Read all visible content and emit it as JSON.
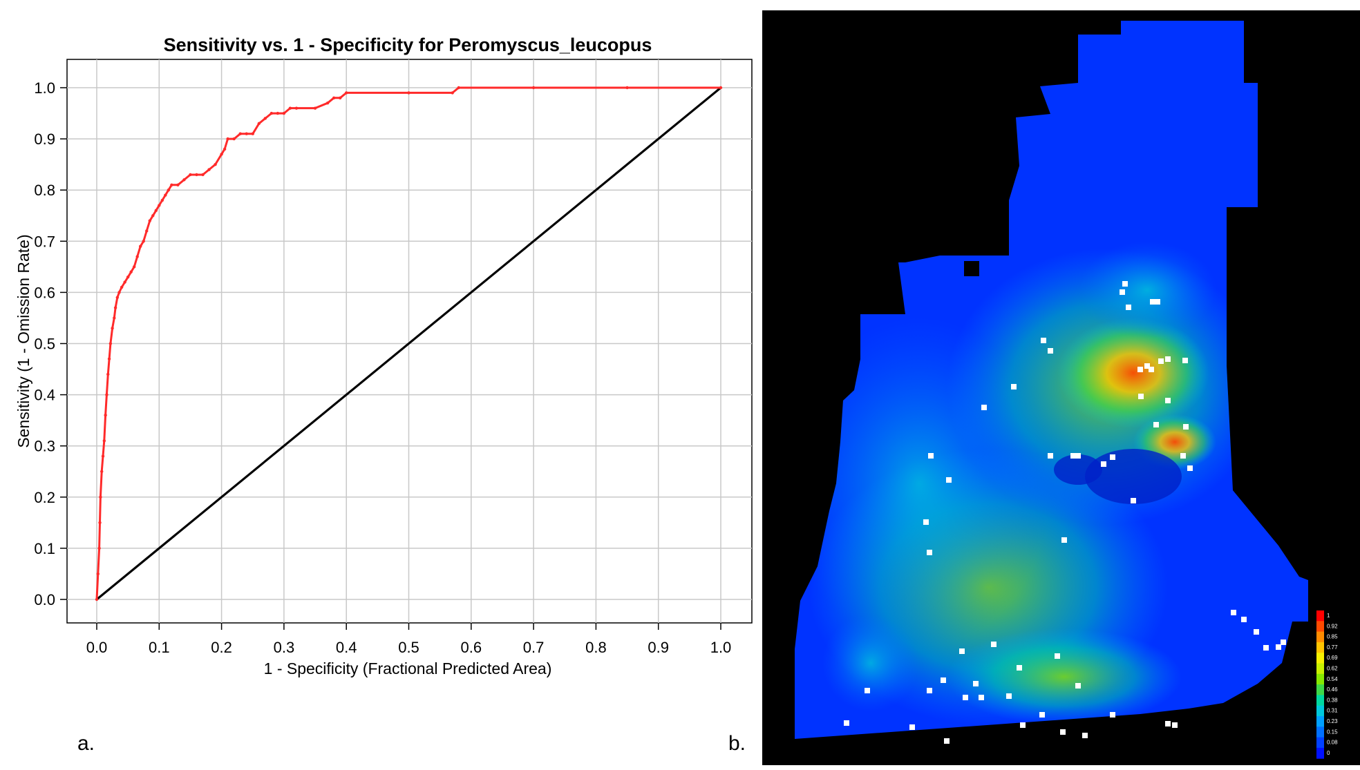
{
  "panels": {
    "a": {
      "label": "a."
    },
    "b": {
      "label": "b."
    }
  },
  "chart_data": [
    {
      "type": "line",
      "title": "Sensitivity vs. 1 - Specificity for Peromyscus_leucopus",
      "xlabel": "1 - Specificity  (Fractional Predicted Area)",
      "ylabel": "Sensitivity  (1 - Omission Rate)",
      "xlim": [
        0.0,
        1.0
      ],
      "ylim": [
        0.0,
        1.0
      ],
      "xticks": [
        "0.0",
        "0.1",
        "0.2",
        "0.3",
        "0.4",
        "0.5",
        "0.6",
        "0.7",
        "0.8",
        "0.9",
        "1.0"
      ],
      "yticks": [
        "0.0",
        "0.1",
        "0.2",
        "0.3",
        "0.4",
        "0.5",
        "0.6",
        "0.7",
        "0.8",
        "0.9",
        "1.0"
      ],
      "grid": true,
      "series": [
        {
          "color": "#ff2a2a",
          "x": [
            0.0,
            0.002,
            0.004,
            0.005,
            0.006,
            0.008,
            0.01,
            0.012,
            0.014,
            0.016,
            0.018,
            0.02,
            0.022,
            0.025,
            0.028,
            0.03,
            0.033,
            0.036,
            0.04,
            0.045,
            0.05,
            0.055,
            0.06,
            0.065,
            0.07,
            0.075,
            0.08,
            0.085,
            0.09,
            0.095,
            0.1,
            0.105,
            0.11,
            0.115,
            0.12,
            0.13,
            0.14,
            0.15,
            0.16,
            0.17,
            0.18,
            0.19,
            0.2,
            0.205,
            0.21,
            0.22,
            0.23,
            0.24,
            0.25,
            0.26,
            0.27,
            0.28,
            0.29,
            0.3,
            0.31,
            0.32,
            0.35,
            0.37,
            0.38,
            0.39,
            0.4,
            0.5,
            0.57,
            0.58,
            0.7,
            0.85,
            1.0
          ],
          "y": [
            0.0,
            0.05,
            0.1,
            0.15,
            0.2,
            0.25,
            0.28,
            0.31,
            0.36,
            0.4,
            0.44,
            0.47,
            0.5,
            0.53,
            0.55,
            0.57,
            0.59,
            0.6,
            0.61,
            0.62,
            0.63,
            0.64,
            0.65,
            0.67,
            0.69,
            0.7,
            0.72,
            0.74,
            0.75,
            0.76,
            0.77,
            0.78,
            0.79,
            0.8,
            0.81,
            0.81,
            0.82,
            0.83,
            0.83,
            0.83,
            0.84,
            0.85,
            0.87,
            0.88,
            0.9,
            0.9,
            0.91,
            0.91,
            0.91,
            0.93,
            0.94,
            0.95,
            0.95,
            0.95,
            0.96,
            0.96,
            0.96,
            0.97,
            0.98,
            0.98,
            0.99,
            0.99,
            0.99,
            1.0,
            1.0,
            1.0,
            1.0
          ]
        },
        {
          "color": "#000000",
          "x": [
            0.0,
            1.0
          ],
          "y": [
            0.0,
            1.0
          ]
        }
      ]
    },
    {
      "type": "heatmap",
      "legend_labels": [
        "1",
        "0.92",
        "0.85",
        "0.77",
        "0.69",
        "0.62",
        "0.54",
        "0.46",
        "0.38",
        "0.31",
        "0.23",
        "0.15",
        "0.08",
        "0"
      ],
      "legend_colors": [
        "#ff0000",
        "#ff4a00",
        "#ff8c00",
        "#ffc400",
        "#f6f000",
        "#c8f000",
        "#86e800",
        "#3ed848",
        "#00d8a0",
        "#00c8dc",
        "#00a0ff",
        "#0070ff",
        "#0040ff",
        "#0010ff"
      ],
      "background": "#000000",
      "map_fill": "#0033ff"
    }
  ]
}
